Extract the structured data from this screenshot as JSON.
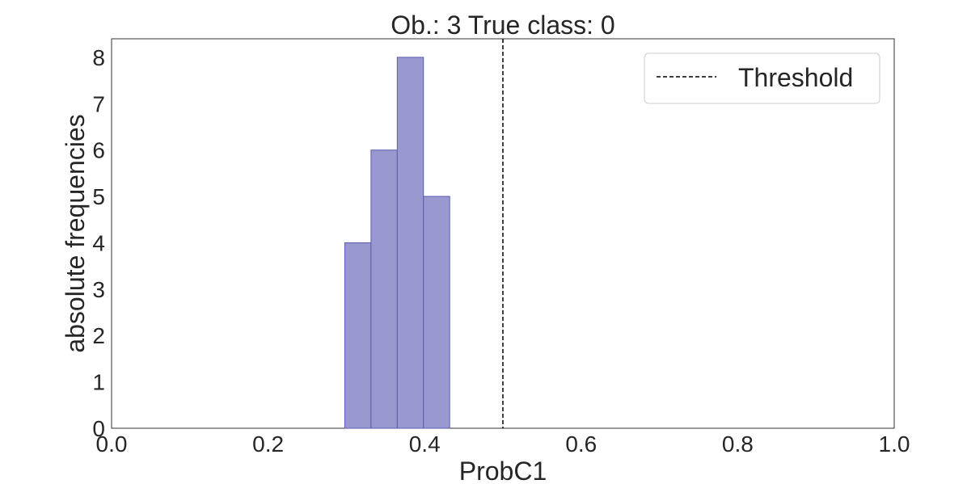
{
  "chart_data": {
    "type": "bar",
    "subtype": "histogram",
    "title": "Ob.: 3 True class: 0",
    "xlabel": "ProbC1",
    "ylabel": "absolute frequencies",
    "xlim": [
      0.0,
      1.0
    ],
    "ylim": [
      0,
      8.4
    ],
    "xticks": [
      "0.0",
      "0.2",
      "0.4",
      "0.6",
      "0.8",
      "1.0"
    ],
    "yticks": [
      "0",
      "1",
      "2",
      "3",
      "4",
      "5",
      "6",
      "7",
      "8"
    ],
    "grid": false,
    "bins": [
      {
        "x0": 0.298,
        "x1": 0.3315,
        "count": 4
      },
      {
        "x0": 0.3315,
        "x1": 0.365,
        "count": 6
      },
      {
        "x0": 0.365,
        "x1": 0.3985,
        "count": 8
      },
      {
        "x0": 0.3985,
        "x1": 0.432,
        "count": 5
      }
    ],
    "bar_color": "#9999d0",
    "bar_edge_color": "#5a5ab4",
    "threshold": {
      "x": 0.5,
      "label": "Threshold",
      "style": "dashed",
      "color": "#000000"
    },
    "legend": {
      "position": "top-right",
      "entries": [
        "Threshold"
      ]
    }
  }
}
